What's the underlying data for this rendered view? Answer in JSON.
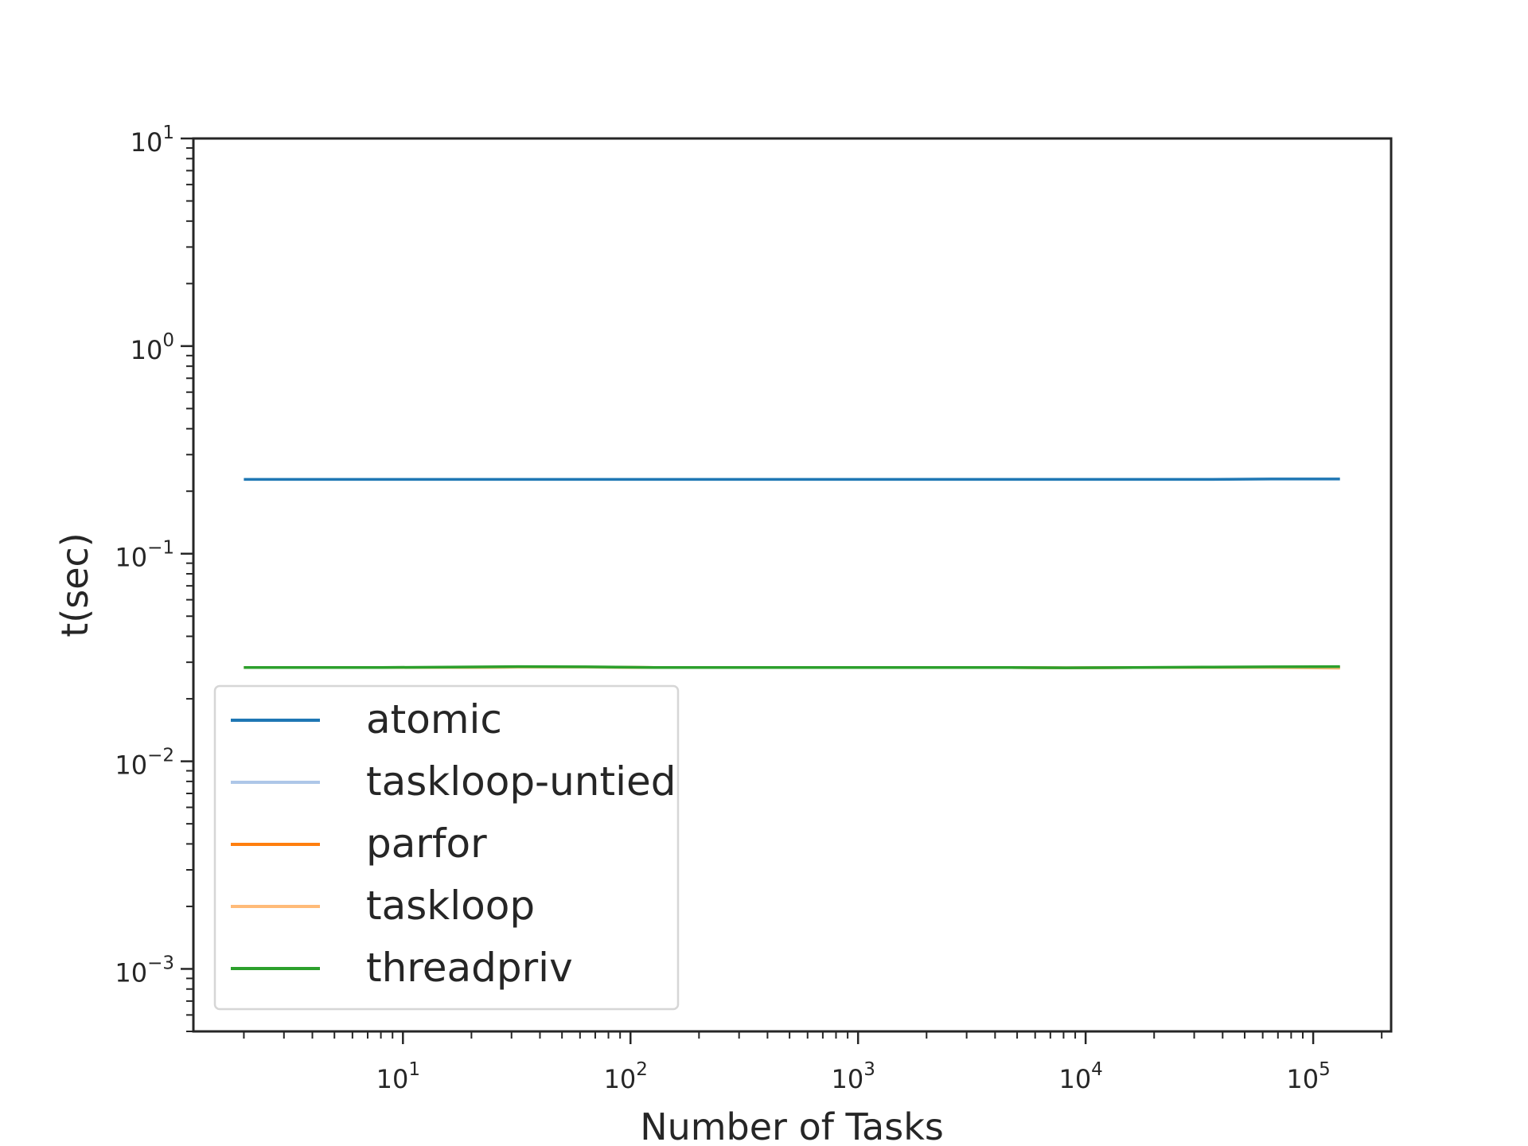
{
  "chart_data": {
    "type": "line",
    "title": "",
    "xlabel": "Number of Tasks",
    "ylabel": "t(sec)",
    "xscale": "log",
    "yscale": "log",
    "xlim": [
      1.2,
      220000
    ],
    "ylim": [
      0.0005,
      10
    ],
    "x_ticks": [
      {
        "value": 10,
        "base": "10",
        "exp": "1"
      },
      {
        "value": 100,
        "base": "10",
        "exp": "2"
      },
      {
        "value": 1000,
        "base": "10",
        "exp": "3"
      },
      {
        "value": 10000,
        "base": "10",
        "exp": "4"
      },
      {
        "value": 100000,
        "base": "10",
        "exp": "5"
      }
    ],
    "y_ticks": [
      {
        "value": 0.001,
        "base": "10",
        "exp": "−3"
      },
      {
        "value": 0.01,
        "base": "10",
        "exp": "−2"
      },
      {
        "value": 0.1,
        "base": "10",
        "exp": "−1"
      },
      {
        "value": 1,
        "base": "10",
        "exp": "0"
      },
      {
        "value": 10,
        "base": "10",
        "exp": "1"
      }
    ],
    "x": [
      2,
      4,
      8,
      16,
      32,
      64,
      128,
      256,
      512,
      1024,
      2048,
      4096,
      8192,
      16384,
      32768,
      65536,
      131072
    ],
    "series": [
      {
        "name": "atomic",
        "color": "#1f77b4",
        "values": [
          0.228,
          0.228,
          0.228,
          0.228,
          0.228,
          0.228,
          0.228,
          0.228,
          0.228,
          0.228,
          0.228,
          0.228,
          0.228,
          0.228,
          0.228,
          0.229,
          0.229
        ]
      },
      {
        "name": "taskloop-untied",
        "color": "#aec7e8",
        "values": [
          0.0283,
          0.0283,
          0.0283,
          0.0283,
          0.0285,
          0.0284,
          0.0283,
          0.0283,
          0.0283,
          0.0283,
          0.0283,
          0.0283,
          0.0282,
          0.0283,
          0.0283,
          0.0283,
          0.0284
        ]
      },
      {
        "name": "parfor",
        "color": "#ff7f0e",
        "values": [
          0.0283,
          0.0283,
          0.0283,
          0.0283,
          0.0284,
          0.0284,
          0.0283,
          0.0283,
          0.0283,
          0.0283,
          0.0283,
          0.0283,
          0.0282,
          0.0283,
          0.0283,
          0.0283,
          0.0283
        ]
      },
      {
        "name": "taskloop",
        "color": "#ffbb78",
        "values": [
          0.0283,
          0.0283,
          0.0283,
          0.0283,
          0.0284,
          0.0284,
          0.0283,
          0.0283,
          0.0283,
          0.0283,
          0.0283,
          0.0283,
          0.0282,
          0.0283,
          0.0283,
          0.0283,
          0.0281
        ]
      },
      {
        "name": "threadpriv",
        "color": "#2ca02c",
        "values": [
          0.0283,
          0.0283,
          0.0283,
          0.0284,
          0.0286,
          0.0285,
          0.0283,
          0.0283,
          0.0283,
          0.0283,
          0.0283,
          0.0283,
          0.0282,
          0.0283,
          0.0284,
          0.0285,
          0.0286
        ]
      }
    ],
    "legend_position": "lower-left",
    "grid": false
  }
}
